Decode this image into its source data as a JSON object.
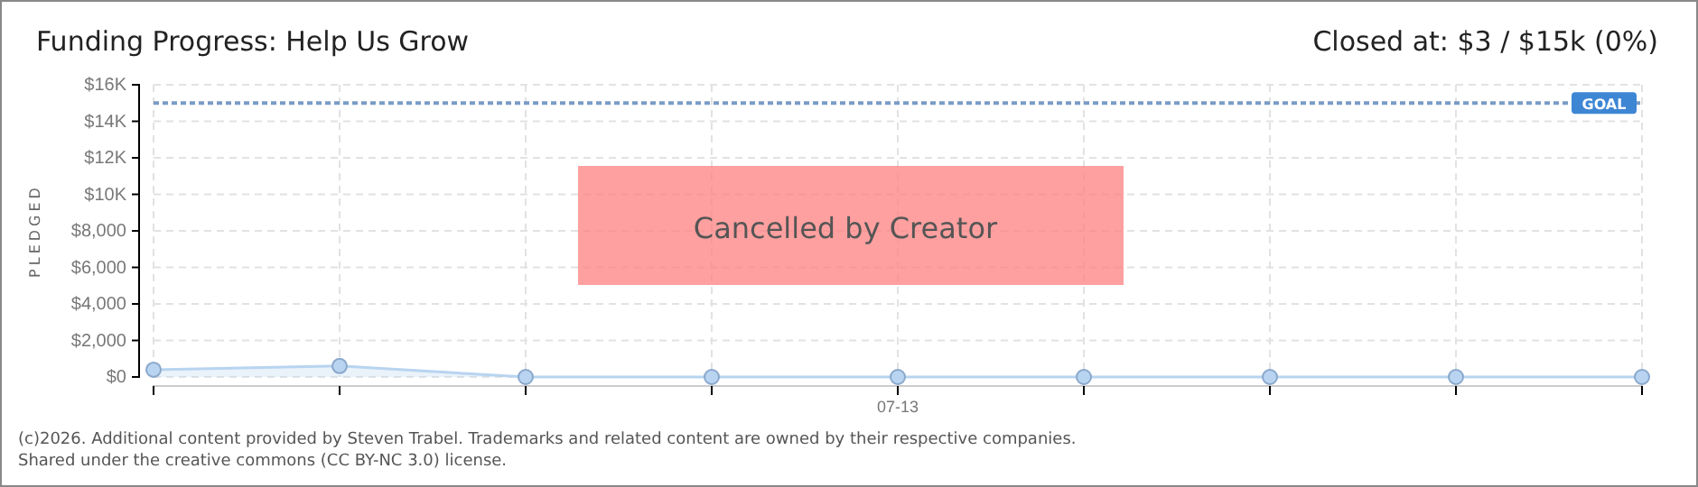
{
  "chart_data": {
    "type": "area",
    "title": "Funding Progress: Help Us Grow",
    "subtitle": "Closed at: $3 / $15k (0%)",
    "ylabel": "PLEDGED",
    "categories": [
      null,
      null,
      null,
      null,
      "07-13",
      null,
      null,
      null,
      null
    ],
    "series": [
      {
        "color": "#b8d4f0",
        "values": [
          400,
          600,
          0,
          0,
          0,
          0,
          0,
          0,
          0
        ]
      }
    ],
    "ylim": [
      0,
      16000
    ],
    "yticks": [
      {
        "value": 0,
        "label": "$0"
      },
      {
        "value": 2000,
        "label": "$2,000"
      },
      {
        "value": 4000,
        "label": "$4,000"
      },
      {
        "value": 6000,
        "label": "$6,000"
      },
      {
        "value": 8000,
        "label": "$8,000"
      },
      {
        "value": 10000,
        "label": "$10K"
      },
      {
        "value": 12000,
        "label": "$12K"
      },
      {
        "value": 14000,
        "label": "$14K"
      },
      {
        "value": 16000,
        "label": "$16K"
      }
    ],
    "grid": true,
    "marker": "circle",
    "ref_lines": [
      {
        "axis": "y",
        "value": 15000,
        "label": "GOAL",
        "color": "#7a9cc6",
        "line_style": "dashed"
      }
    ],
    "annotations": [
      "Cancelled by Creator",
      "(c)2026. Additional content provided by Steven Trabel. Trademarks and related content are owned by their respective companies.",
      "Shared under the creative commons (CC BY-NC 3.0) license."
    ]
  }
}
